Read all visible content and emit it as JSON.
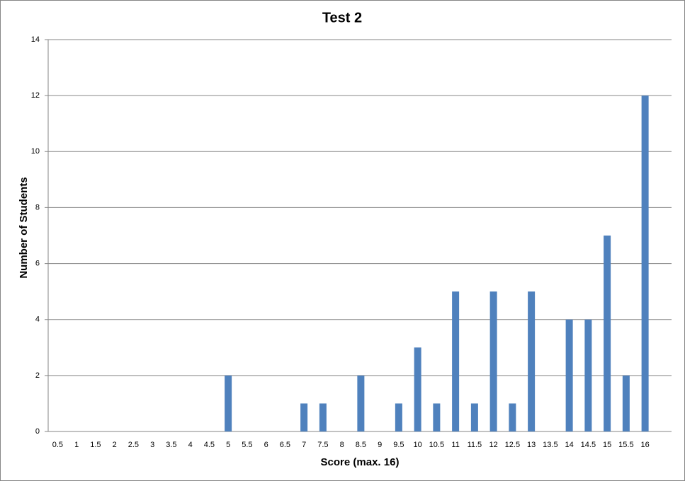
{
  "chart_data": {
    "type": "bar",
    "title": "Test 2",
    "x_label": "Score (max. 16)",
    "y_label": "Number of Students",
    "categories": [
      "0.5",
      "1",
      "1.5",
      "2",
      "2.5",
      "3",
      "3.5",
      "4",
      "4.5",
      "5",
      "5.5",
      "6",
      "6.5",
      "7",
      "7.5",
      "8",
      "8.5",
      "9",
      "9.5",
      "10",
      "10.5",
      "11",
      "11.5",
      "12",
      "12.5",
      "13",
      "13.5",
      "14",
      "14.5",
      "15",
      "15.5",
      "16"
    ],
    "values": [
      0,
      0,
      0,
      0,
      0,
      0,
      0,
      0,
      0,
      2,
      0,
      0,
      0,
      1,
      1,
      0,
      2,
      0,
      1,
      3,
      1,
      5,
      1,
      5,
      1,
      5,
      0,
      4,
      4,
      7,
      2,
      12
    ],
    "color": "#4f81bd",
    "ylim": [
      0,
      14
    ],
    "yticks": [
      0,
      2,
      4,
      6,
      8,
      10,
      12,
      14
    ],
    "grid": true
  }
}
